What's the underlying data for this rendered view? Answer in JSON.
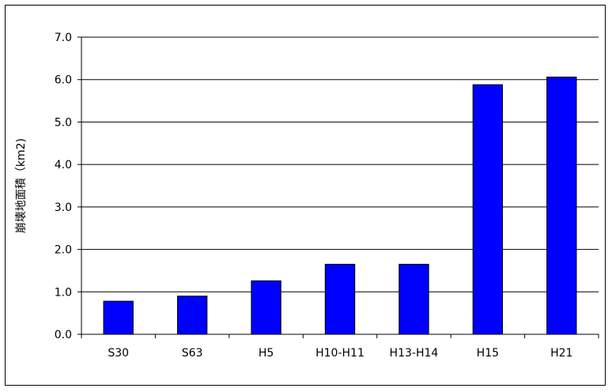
{
  "chart_data": {
    "type": "bar",
    "categories": [
      "S30",
      "S63",
      "H5",
      "H10-H11",
      "H13-H14",
      "H15",
      "H21"
    ],
    "values": [
      0.78,
      0.9,
      1.26,
      1.65,
      1.65,
      5.88,
      6.06
    ],
    "ylabel": "崩壊地面積（km2)",
    "ylim": [
      0,
      7
    ],
    "yticks": [
      "0.0",
      "1.0",
      "2.0",
      "3.0",
      "4.0",
      "5.0",
      "6.0",
      "7.0"
    ],
    "grid": true,
    "legend": "none",
    "bar_color": "#0000ff"
  }
}
